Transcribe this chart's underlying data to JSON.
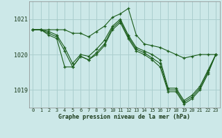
{
  "title": "Graphe pression niveau de la mer (hPa)",
  "background_color": "#cce8e8",
  "grid_color": "#aacece",
  "line_color": "#1a5c1a",
  "marker_color": "#1a5c1a",
  "x_ticks": [
    0,
    1,
    2,
    3,
    4,
    5,
    6,
    7,
    8,
    9,
    10,
    11,
    12,
    13,
    14,
    15,
    16,
    17,
    18,
    19,
    20,
    21,
    22,
    23
  ],
  "ylim": [
    1018.5,
    1021.5
  ],
  "yticks": [
    1019,
    1020,
    1021
  ],
  "series": [
    [
      1020.7,
      1020.7,
      1020.7,
      1020.7,
      1020.7,
      1020.6,
      1020.6,
      1020.5,
      1020.65,
      1020.8,
      1021.05,
      1021.15,
      1021.3,
      1020.55,
      1020.3,
      1020.25,
      1020.2,
      1020.1,
      1020.0,
      1019.9,
      1019.95,
      1020.0,
      1020.0,
      1020.0
    ],
    [
      1020.7,
      1020.7,
      1020.65,
      1020.55,
      1020.2,
      1019.75,
      1020.0,
      1019.95,
      1020.15,
      1020.4,
      1020.8,
      1021.0,
      1020.55,
      1020.2,
      1020.1,
      1020.0,
      1019.85,
      1019.05,
      1019.05,
      1018.7,
      1018.85,
      1019.1,
      1019.55,
      1020.0
    ],
    [
      1020.7,
      1020.7,
      1020.6,
      1020.5,
      1020.1,
      1019.65,
      1019.95,
      1019.85,
      1020.05,
      1020.3,
      1020.75,
      1020.95,
      1020.5,
      1020.15,
      1020.05,
      1019.9,
      1019.75,
      1019.0,
      1019.0,
      1018.65,
      1018.8,
      1019.05,
      1019.5,
      1020.0
    ],
    [
      1020.7,
      1020.7,
      1020.55,
      1020.45,
      1019.65,
      1019.65,
      1019.95,
      1019.85,
      1020.0,
      1020.25,
      1020.7,
      1020.9,
      1020.45,
      1020.1,
      1020.0,
      1019.85,
      1019.65,
      1018.95,
      1018.95,
      1018.6,
      1018.75,
      1019.0,
      1019.45,
      1020.0
    ]
  ]
}
